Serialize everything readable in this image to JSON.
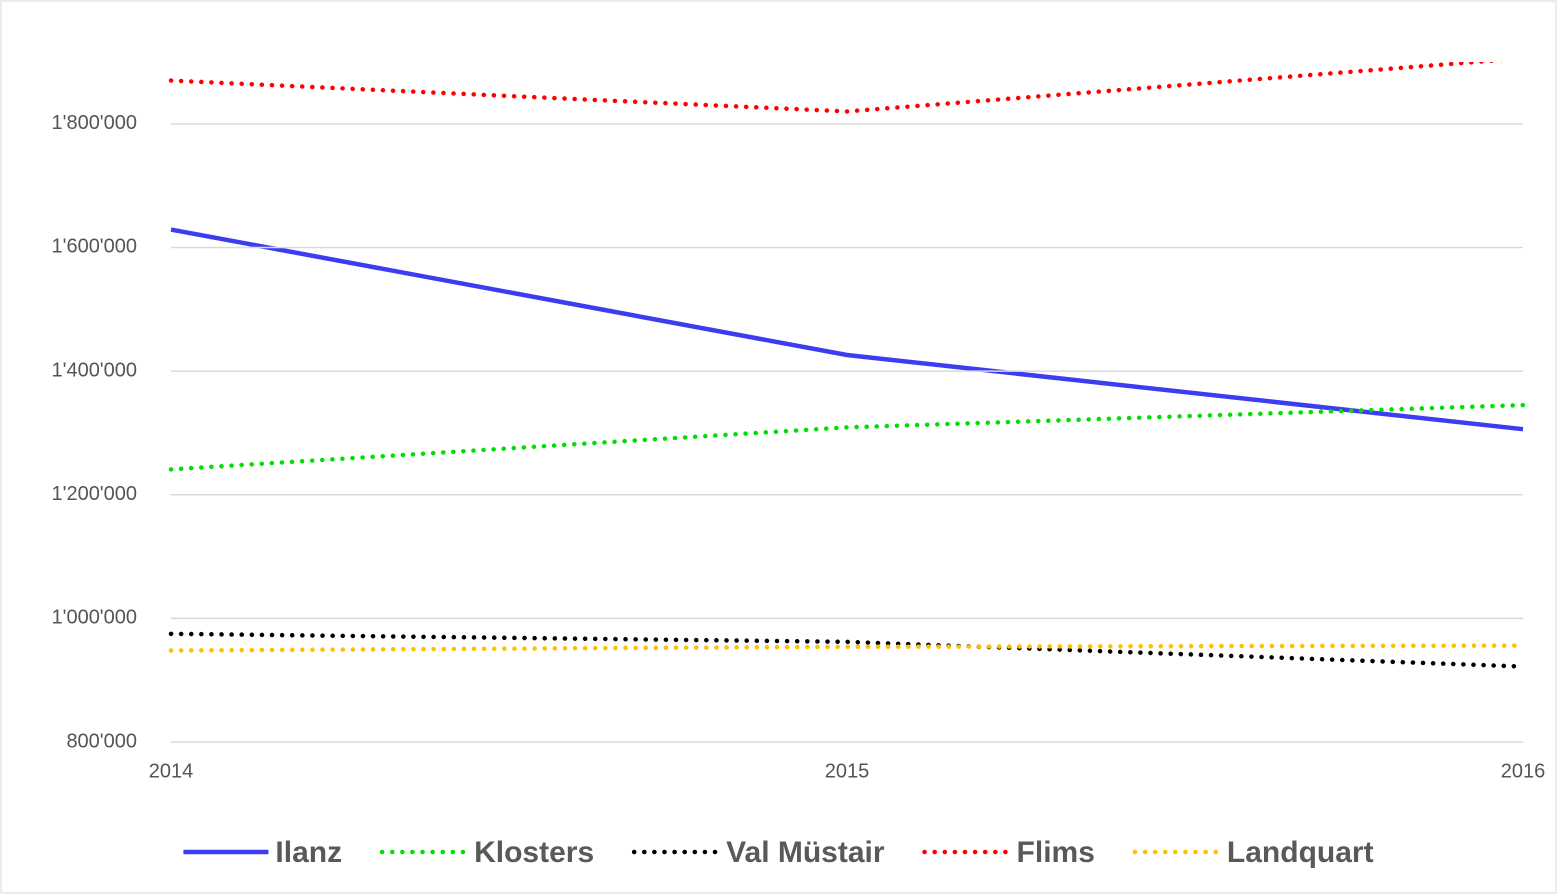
{
  "chart_data": {
    "type": "line",
    "x": [
      2014,
      2015,
      2016
    ],
    "xlim": [
      2014,
      2016
    ],
    "xticks": [
      2014,
      2015,
      2016
    ],
    "ylim": [
      800000,
      1900000
    ],
    "yticks": [
      {
        "value": 800000,
        "label": "800'000"
      },
      {
        "value": 1000000,
        "label": "1'000'000"
      },
      {
        "value": 1200000,
        "label": "1'200'000"
      },
      {
        "value": 1400000,
        "label": "1'400'000"
      },
      {
        "value": 1600000,
        "label": "1'600'000"
      },
      {
        "value": 1800000,
        "label": "1'800'000"
      }
    ],
    "grid": true,
    "legend": "bottom",
    "series": [
      {
        "name": "Ilanz",
        "color": "#3c3cf0",
        "line_style": "solid",
        "values": [
          1629000,
          1426000,
          1306000
        ]
      },
      {
        "name": "Klosters",
        "color": "#00e000",
        "line_style": "dotted",
        "values": [
          1241000,
          1309000,
          1345000
        ]
      },
      {
        "name": "Val Müstair",
        "color": "#000000",
        "line_style": "dotted",
        "values": [
          975000,
          962000,
          922000
        ]
      },
      {
        "name": "Flims",
        "color": "#ff0000",
        "line_style": "dotted",
        "values": [
          1870000,
          1820000,
          1906000
        ]
      },
      {
        "name": "Landquart",
        "color": "#ffc000",
        "line_style": "dotted",
        "values": [
          948000,
          954000,
          956000
        ]
      }
    ]
  }
}
